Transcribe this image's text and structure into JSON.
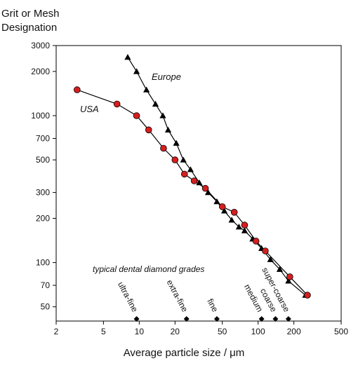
{
  "chart_data": {
    "type": "line",
    "ylabel_line1": "Grit or Mesh",
    "ylabel_line2": "Designation",
    "xlabel": "Average particle size / μm",
    "x_scale": "log",
    "y_scale": "log",
    "xlim": [
      2,
      500
    ],
    "ylim": [
      40,
      3000
    ],
    "x_ticks": [
      2,
      5,
      10,
      20,
      50,
      100,
      200,
      500
    ],
    "y_ticks": [
      50,
      70,
      100,
      200,
      300,
      500,
      700,
      1000,
      2000,
      3000
    ],
    "series": [
      {
        "name": "Europe",
        "marker": "triangle",
        "color": "#000000",
        "points": [
          [
            8,
            2500
          ],
          [
            9.5,
            2000
          ],
          [
            11.5,
            1500
          ],
          [
            13.7,
            1200
          ],
          [
            15.8,
            1000
          ],
          [
            17.5,
            800
          ],
          [
            20.5,
            650
          ],
          [
            23.5,
            500
          ],
          [
            27,
            430
          ],
          [
            32,
            350
          ],
          [
            38,
            300
          ],
          [
            45,
            260
          ],
          [
            52,
            225
          ],
          [
            60,
            195
          ],
          [
            69,
            175
          ],
          [
            77,
            165
          ],
          [
            90,
            145
          ],
          [
            107,
            125
          ],
          [
            127,
            105
          ],
          [
            152,
            90
          ],
          [
            180,
            75
          ],
          [
            250,
            60
          ]
        ]
      },
      {
        "name": "USA",
        "marker": "circle",
        "color": "#d61e1e",
        "points": [
          [
            3,
            1500
          ],
          [
            6.5,
            1200
          ],
          [
            9.5,
            1000
          ],
          [
            12,
            800
          ],
          [
            16,
            600
          ],
          [
            20,
            500
          ],
          [
            24,
            400
          ],
          [
            29,
            360
          ],
          [
            36,
            320
          ],
          [
            50,
            240
          ],
          [
            63,
            220
          ],
          [
            77,
            180
          ],
          [
            96,
            140
          ],
          [
            115,
            120
          ],
          [
            185,
            80
          ],
          [
            260,
            60
          ]
        ]
      }
    ],
    "annotations": {
      "grades_title": "typical dental diamond grades",
      "grades": [
        {
          "label": "ultra-fine",
          "x": 9.5
        },
        {
          "label": "extra-fine",
          "x": 25
        },
        {
          "label": "fine",
          "x": 45
        },
        {
          "label": "medium",
          "x": 107
        },
        {
          "label": "coarse",
          "x": 140
        },
        {
          "label": "super-coarse",
          "x": 180
        }
      ]
    }
  }
}
